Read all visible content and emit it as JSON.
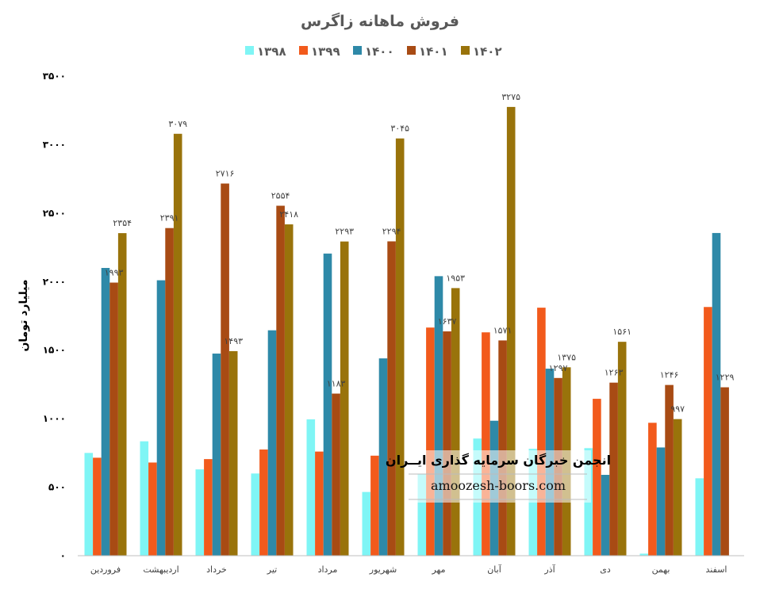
{
  "chart_data": {
    "type": "bar",
    "title": "فروش ماهانه زاگرس",
    "ylabel": "میلیارد تومان",
    "xlabel": "",
    "ylim": [
      0,
      3500
    ],
    "yticks": [
      0,
      500,
      1000,
      1500,
      2000,
      2500,
      3000,
      3500
    ],
    "ytick_labels": [
      "۰",
      "۵۰۰",
      "۱۰۰۰",
      "۱۵۰۰",
      "۲۰۰۰",
      "۲۵۰۰",
      "۳۰۰۰",
      "۳۵۰۰"
    ],
    "legend_position": "top",
    "grid": false,
    "categories": [
      "فروردین",
      "اردیبهشت",
      "خرداد",
      "تیر",
      "مرداد",
      "شهریور",
      "مهر",
      "آبان",
      "آذر",
      "دی",
      "بهمن",
      "اسفند"
    ],
    "series": [
      {
        "name": "۱۳۹۸",
        "color": "#7ff5f5",
        "values": [
          750,
          835,
          630,
          600,
          995,
          465,
          595,
          855,
          780,
          785,
          15,
          565
        ],
        "labels": []
      },
      {
        "name": "۱۳۹۹",
        "color": "#f25a1c",
        "values": [
          715,
          680,
          705,
          775,
          760,
          730,
          1665,
          1630,
          1810,
          1145,
          970,
          1815
        ],
        "labels": []
      },
      {
        "name": "۱۴۰۰",
        "color": "#2e89a8",
        "values": [
          2100,
          2010,
          1475,
          1645,
          2205,
          1440,
          2040,
          985,
          1365,
          590,
          790,
          2355
        ],
        "labels": []
      },
      {
        "name": "۱۴۰۱",
        "color": "#a84b14",
        "values": [
          1993,
          2391,
          2716,
          2554,
          1183,
          2294,
          1637,
          1571,
          1297,
          1263,
          1246,
          1229
        ],
        "labels": [
          "۱۹۹۳",
          "۲۳۹۱",
          "۲۷۱۶",
          "۲۵۵۴",
          "۱۱۸۳",
          "۲۲۹۴",
          "۱۶۳۷",
          "۱۵۷۱",
          "۱۲۹۷",
          "۱۲۶۳",
          "۱۲۴۶",
          "۱۲۲۹"
        ]
      },
      {
        "name": "۱۴۰۲",
        "color": "#99730b",
        "values": [
          2354,
          3079,
          1493,
          2418,
          2293,
          3045,
          1953,
          3275,
          1375,
          1561,
          997,
          null
        ],
        "labels": [
          "۲۳۵۴",
          "۳۰۷۹",
          "۱۴۹۳",
          "۲۴۱۸",
          "۲۲۹۳",
          "۳۰۴۵",
          "۱۹۵۳",
          "۳۲۷۵",
          "۱۳۷۵",
          "۱۵۶۱",
          "۹۹۷",
          ""
        ]
      }
    ]
  },
  "watermark": {
    "title": "انجمن خبرگان سرمایه گذاری ایــران",
    "url": "amoozesh-boors.com"
  }
}
